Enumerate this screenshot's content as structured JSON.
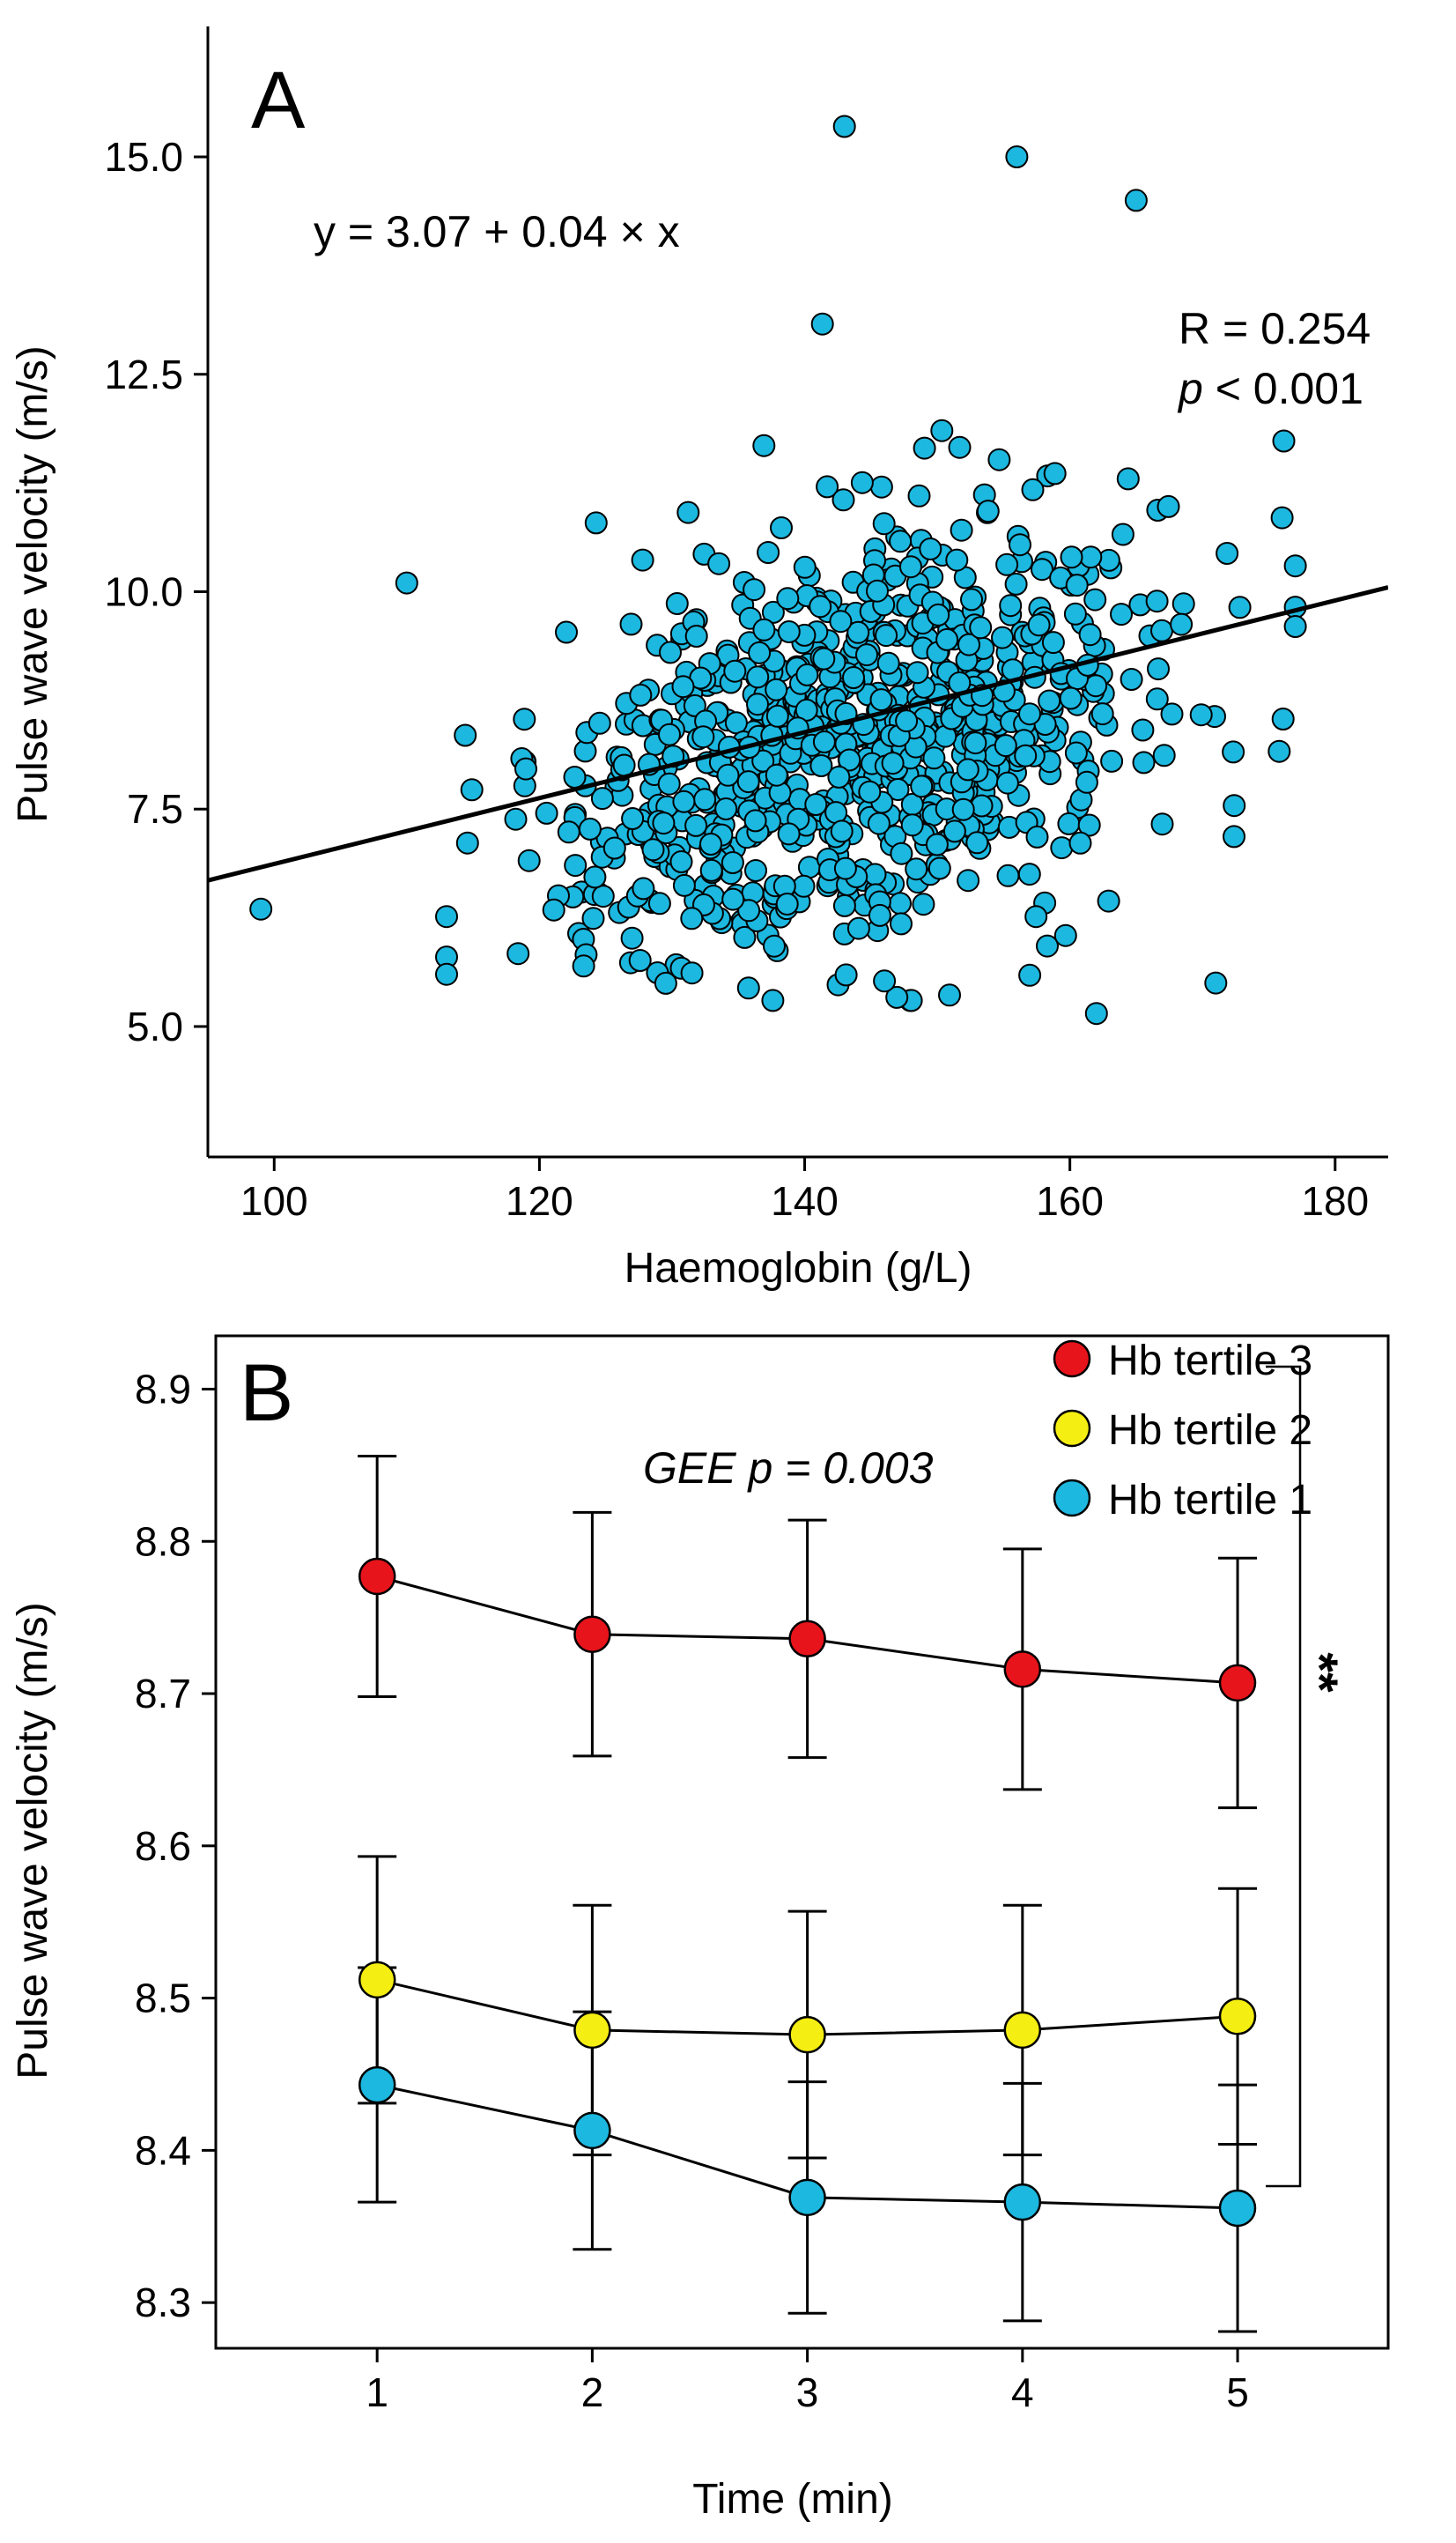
{
  "chart_data": [
    {
      "panel": "A",
      "type": "scatter",
      "xlabel": "Haemoglobin (g/L)",
      "ylabel": "Pulse wave velocity (m/s)",
      "xlim": [
        95,
        184
      ],
      "ylim": [
        3.5,
        16.5
      ],
      "xticks": [
        100,
        120,
        140,
        160,
        180
      ],
      "xtick_labels": [
        "100",
        "120",
        "140",
        "160",
        "180"
      ],
      "yticks": [
        5.0,
        7.5,
        10.0,
        12.5,
        15.0
      ],
      "ytick_labels": [
        "5.0",
        "7.5",
        "10.0",
        "12.5",
        "15.0"
      ],
      "marker_color": "#1cb8e0",
      "fit_line": {
        "intercept": 3.07,
        "slope": 0.04,
        "x_range": [
          95,
          184
        ],
        "y_at_start": 6.68,
        "y_at_end": 10.05,
        "color": "#000000"
      },
      "equation": "y = 3.07 + 0.04 × x",
      "stat_r": "R = 0.254",
      "stat_p_italic": "p",
      "stat_p_rest": " < 0.001",
      "point_count_approx": 900
    },
    {
      "panel": "B",
      "type": "line",
      "xlabel": "Time (min)",
      "ylabel": "Pulse wave velocity (m/s)",
      "x": [
        1,
        2,
        3,
        4,
        5
      ],
      "xtick_labels": [
        "1",
        "2",
        "3",
        "4",
        "5"
      ],
      "xlim": [
        0.25,
        5.7
      ],
      "ylim": [
        8.27,
        8.935
      ],
      "yticks": [
        8.3,
        8.4,
        8.5,
        8.6,
        8.7,
        8.8,
        8.9
      ],
      "ytick_labels": [
        "8.3",
        "8.4",
        "8.5",
        "8.6",
        "8.7",
        "8.8",
        "8.9"
      ],
      "annotation": "GEE p = 0.003",
      "significance": "**",
      "series": [
        {
          "name": "Hb tertile 3",
          "color": "#e8141b",
          "values": [
            8.777,
            8.739,
            8.736,
            8.716,
            8.707
          ],
          "err": [
            0.079,
            0.08,
            0.078,
            0.079,
            0.082
          ]
        },
        {
          "name": "Hb tertile 2",
          "color": "#f5ee12",
          "values": [
            8.512,
            8.479,
            8.476,
            8.479,
            8.488
          ],
          "err": [
            0.081,
            0.082,
            0.081,
            0.082,
            0.084
          ]
        },
        {
          "name": "Hb tertile 1",
          "color": "#1cb8e0",
          "values": [
            8.443,
            8.413,
            8.369,
            8.366,
            8.362
          ],
          "err": [
            0.077,
            0.078,
            0.076,
            0.078,
            0.081
          ]
        }
      ]
    }
  ]
}
